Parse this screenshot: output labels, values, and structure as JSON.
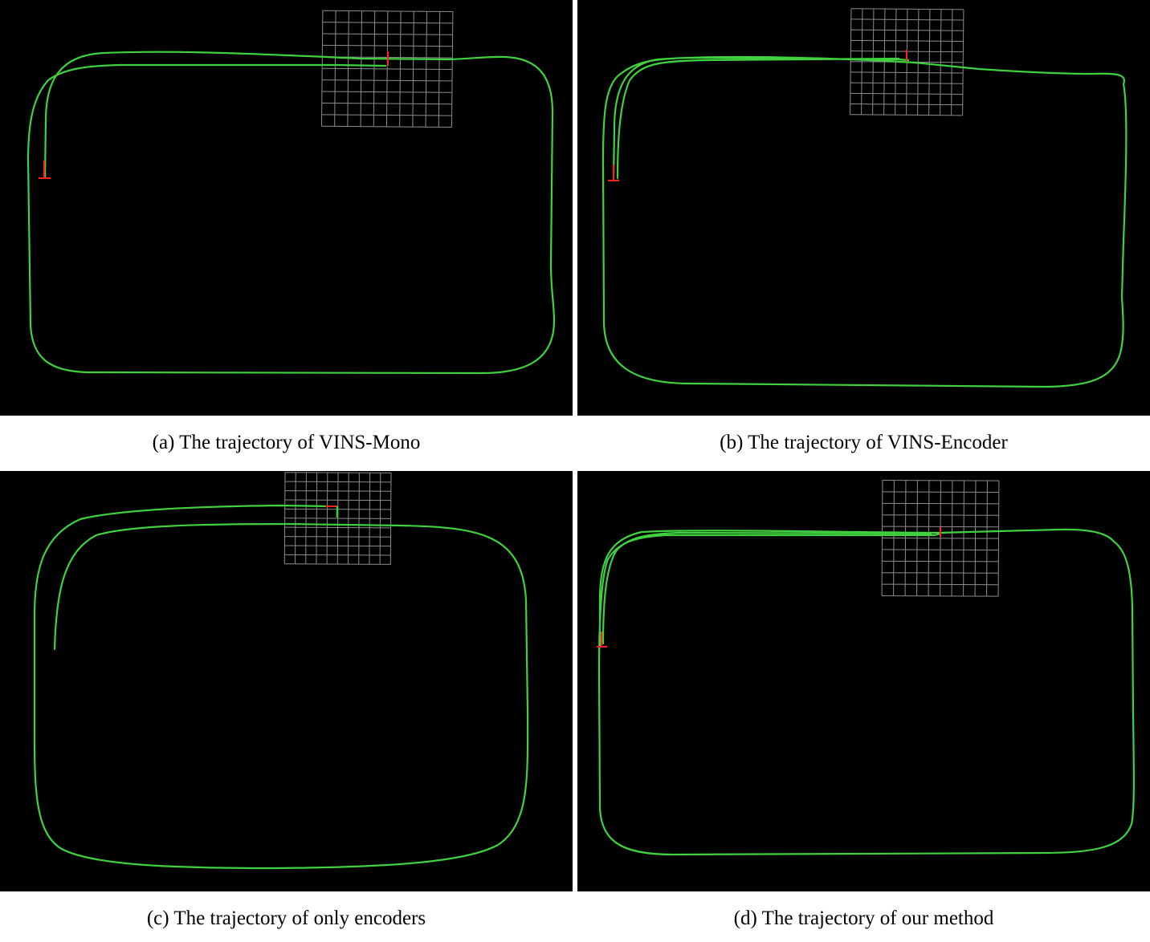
{
  "colors": {
    "background": "#000000",
    "trajectory": "#3fd13f",
    "grid": "#8c8c8c",
    "axis_red": "#ff2020"
  },
  "figure": {
    "panels": [
      {
        "id": "a",
        "caption": "(a) The trajectory of VINS-Mono"
      },
      {
        "id": "b",
        "caption": "(b) The trajectory of VINS-Encoder"
      },
      {
        "id": "c",
        "caption": "(c) The trajectory of only encoders"
      },
      {
        "id": "d",
        "caption": "(d) The trajectory of our method"
      }
    ]
  }
}
